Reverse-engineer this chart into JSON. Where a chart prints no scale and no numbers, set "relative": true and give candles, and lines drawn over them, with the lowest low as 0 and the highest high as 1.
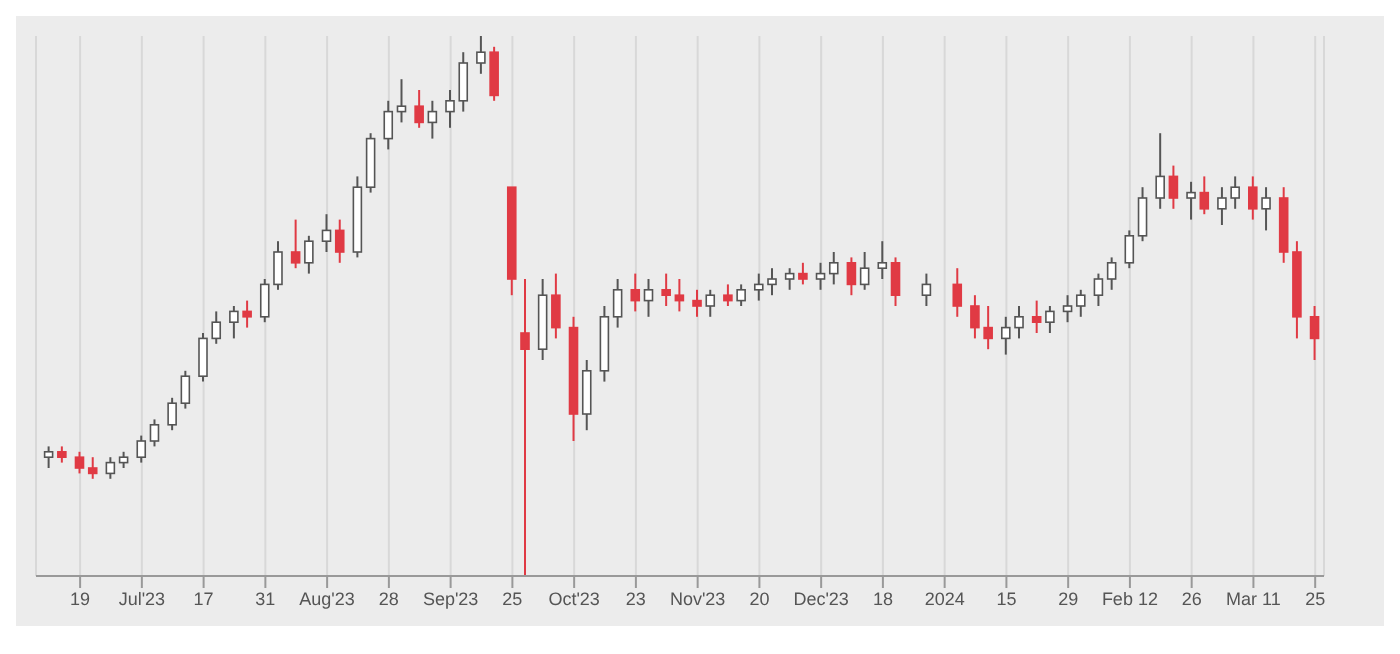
{
  "chart_data": {
    "type": "candlestick",
    "relative": true,
    "grid": "x",
    "xlim": [
      "2023-06-09",
      "2024-03-27"
    ],
    "xticks": [
      {
        "value": "2023-06-19",
        "label": "19"
      },
      {
        "value": "2023-07-03",
        "label": "Jul'23"
      },
      {
        "value": "2023-07-17",
        "label": "17"
      },
      {
        "value": "2023-07-31",
        "label": "31"
      },
      {
        "value": "2023-08-14",
        "label": "Aug'23"
      },
      {
        "value": "2023-08-28",
        "label": "28"
      },
      {
        "value": "2023-09-11",
        "label": "Sep'23"
      },
      {
        "value": "2023-09-25",
        "label": "25"
      },
      {
        "value": "2023-10-09",
        "label": "Oct'23"
      },
      {
        "value": "2023-10-23",
        "label": "23"
      },
      {
        "value": "2023-11-06",
        "label": "Nov'23"
      },
      {
        "value": "2023-11-20",
        "label": "20"
      },
      {
        "value": "2023-12-04",
        "label": "Dec'23"
      },
      {
        "value": "2023-12-18",
        "label": "18"
      },
      {
        "value": "2024-01-01",
        "label": "2024"
      },
      {
        "value": "2024-01-15",
        "label": "15"
      },
      {
        "value": "2024-01-29",
        "label": "29"
      },
      {
        "value": "2024-02-12",
        "label": "Feb 12"
      },
      {
        "value": "2024-02-26",
        "label": "26"
      },
      {
        "value": "2024-03-11",
        "label": "Mar 11"
      },
      {
        "value": "2024-03-25",
        "label": "25"
      }
    ],
    "x": [
      "2023-06-12",
      "2023-06-15",
      "2023-06-19",
      "2023-06-22",
      "2023-06-26",
      "2023-06-29",
      "2023-07-03",
      "2023-07-06",
      "2023-07-10",
      "2023-07-13",
      "2023-07-17",
      "2023-07-20",
      "2023-07-24",
      "2023-07-27",
      "2023-07-31",
      "2023-08-03",
      "2023-08-07",
      "2023-08-10",
      "2023-08-14",
      "2023-08-17",
      "2023-08-21",
      "2023-08-24",
      "2023-08-28",
      "2023-08-31",
      "2023-09-04",
      "2023-09-07",
      "2023-09-11",
      "2023-09-14",
      "2023-09-18",
      "2023-09-21",
      "2023-09-25",
      "2023-09-28",
      "2023-10-02",
      "2023-10-05",
      "2023-10-09",
      "2023-10-12",
      "2023-10-16",
      "2023-10-19",
      "2023-10-23",
      "2023-10-26",
      "2023-10-30",
      "2023-11-02",
      "2023-11-06",
      "2023-11-09",
      "2023-11-13",
      "2023-11-16",
      "2023-11-20",
      "2023-11-23",
      "2023-11-27",
      "2023-11-30",
      "2023-12-04",
      "2023-12-07",
      "2023-12-11",
      "2023-12-14",
      "2023-12-18",
      "2023-12-21",
      "2023-12-28",
      "2024-01-04",
      "2024-01-08",
      "2024-01-11",
      "2024-01-15",
      "2024-01-18",
      "2024-01-22",
      "2024-01-25",
      "2024-01-29",
      "2024-02-01",
      "2024-02-05",
      "2024-02-08",
      "2024-02-12",
      "2024-02-15",
      "2024-02-19",
      "2024-02-22",
      "2024-02-26",
      "2024-02-29",
      "2024-03-04",
      "2024-03-07",
      "2024-03-11",
      "2024-03-14",
      "2024-03-18",
      "2024-03-21",
      "2024-03-25"
    ],
    "ohlc": [
      [
        0.22,
        0.24,
        0.2,
        0.23
      ],
      [
        0.23,
        0.24,
        0.21,
        0.22
      ],
      [
        0.22,
        0.23,
        0.19,
        0.2
      ],
      [
        0.2,
        0.22,
        0.18,
        0.19
      ],
      [
        0.19,
        0.22,
        0.18,
        0.21
      ],
      [
        0.21,
        0.23,
        0.2,
        0.22
      ],
      [
        0.22,
        0.26,
        0.21,
        0.25
      ],
      [
        0.25,
        0.29,
        0.24,
        0.28
      ],
      [
        0.28,
        0.33,
        0.27,
        0.32
      ],
      [
        0.32,
        0.38,
        0.31,
        0.37
      ],
      [
        0.37,
        0.45,
        0.36,
        0.44
      ],
      [
        0.44,
        0.49,
        0.43,
        0.47
      ],
      [
        0.47,
        0.5,
        0.44,
        0.49
      ],
      [
        0.49,
        0.51,
        0.46,
        0.48
      ],
      [
        0.48,
        0.55,
        0.47,
        0.54
      ],
      [
        0.54,
        0.62,
        0.53,
        0.6
      ],
      [
        0.6,
        0.66,
        0.57,
        0.58
      ],
      [
        0.58,
        0.63,
        0.56,
        0.62
      ],
      [
        0.62,
        0.67,
        0.6,
        0.64
      ],
      [
        0.64,
        0.66,
        0.58,
        0.6
      ],
      [
        0.6,
        0.74,
        0.59,
        0.72
      ],
      [
        0.72,
        0.82,
        0.71,
        0.81
      ],
      [
        0.81,
        0.88,
        0.79,
        0.86
      ],
      [
        0.86,
        0.92,
        0.84,
        0.87
      ],
      [
        0.87,
        0.9,
        0.83,
        0.84
      ],
      [
        0.84,
        0.88,
        0.81,
        0.86
      ],
      [
        0.86,
        0.9,
        0.83,
        0.88
      ],
      [
        0.88,
        0.97,
        0.86,
        0.95
      ],
      [
        0.95,
        1.0,
        0.93,
        0.97
      ],
      [
        0.97,
        0.98,
        0.88,
        0.89
      ],
      [
        0.72,
        0.72,
        0.52,
        0.55
      ],
      [
        0.45,
        0.55,
        0,
        0.42
      ],
      [
        0.42,
        0.55,
        0.4,
        0.52
      ],
      [
        0.52,
        0.56,
        0.44,
        0.46
      ],
      [
        0.46,
        0.48,
        0.25,
        0.3
      ],
      [
        0.3,
        0.4,
        0.27,
        0.38
      ],
      [
        0.38,
        0.5,
        0.36,
        0.48
      ],
      [
        0.48,
        0.55,
        0.46,
        0.53
      ],
      [
        0.53,
        0.56,
        0.49,
        0.51
      ],
      [
        0.51,
        0.55,
        0.48,
        0.53
      ],
      [
        0.53,
        0.56,
        0.5,
        0.52
      ],
      [
        0.52,
        0.55,
        0.49,
        0.51
      ],
      [
        0.51,
        0.53,
        0.48,
        0.5
      ],
      [
        0.5,
        0.53,
        0.48,
        0.52
      ],
      [
        0.52,
        0.54,
        0.5,
        0.51
      ],
      [
        0.51,
        0.54,
        0.5,
        0.53
      ],
      [
        0.53,
        0.56,
        0.51,
        0.54
      ],
      [
        0.54,
        0.57,
        0.52,
        0.55
      ],
      [
        0.55,
        0.57,
        0.53,
        0.56
      ],
      [
        0.56,
        0.58,
        0.54,
        0.55
      ],
      [
        0.55,
        0.58,
        0.53,
        0.56
      ],
      [
        0.56,
        0.6,
        0.54,
        0.58
      ],
      [
        0.58,
        0.59,
        0.52,
        0.54
      ],
      [
        0.54,
        0.6,
        0.53,
        0.57
      ],
      [
        0.57,
        0.62,
        0.55,
        0.58
      ],
      [
        0.58,
        0.59,
        0.5,
        0.52
      ],
      [
        0.52,
        0.56,
        0.5,
        0.54
      ],
      [
        0.54,
        0.57,
        0.48,
        0.5
      ],
      [
        0.5,
        0.52,
        0.44,
        0.46
      ],
      [
        0.46,
        0.5,
        0.42,
        0.44
      ],
      [
        0.44,
        0.48,
        0.41,
        0.46
      ],
      [
        0.46,
        0.5,
        0.44,
        0.48
      ],
      [
        0.48,
        0.51,
        0.45,
        0.47
      ],
      [
        0.47,
        0.5,
        0.45,
        0.49
      ],
      [
        0.49,
        0.52,
        0.47,
        0.5
      ],
      [
        0.5,
        0.53,
        0.48,
        0.52
      ],
      [
        0.52,
        0.56,
        0.5,
        0.55
      ],
      [
        0.55,
        0.59,
        0.53,
        0.58
      ],
      [
        0.58,
        0.64,
        0.57,
        0.63
      ],
      [
        0.63,
        0.72,
        0.62,
        0.7
      ],
      [
        0.7,
        0.82,
        0.68,
        0.74
      ],
      [
        0.74,
        0.76,
        0.68,
        0.7
      ],
      [
        0.7,
        0.73,
        0.66,
        0.71
      ],
      [
        0.71,
        0.74,
        0.67,
        0.68
      ],
      [
        0.68,
        0.72,
        0.65,
        0.7
      ],
      [
        0.7,
        0.74,
        0.68,
        0.72
      ],
      [
        0.72,
        0.74,
        0.66,
        0.68
      ],
      [
        0.68,
        0.72,
        0.64,
        0.7
      ],
      [
        0.7,
        0.72,
        0.58,
        0.6
      ],
      [
        0.6,
        0.62,
        0.44,
        0.48
      ],
      [
        0.48,
        0.5,
        0.4,
        0.44
      ]
    ]
  }
}
